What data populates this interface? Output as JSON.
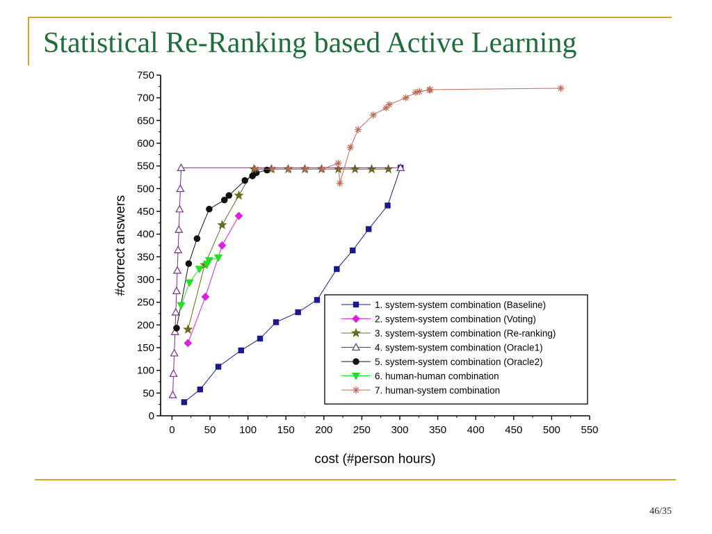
{
  "slide": {
    "title": "Statistical Re-Ranking based Active Learning",
    "page_number": "46/35"
  },
  "colors": {
    "title": "#1f6e3c",
    "rule": "#d6a22e"
  },
  "chart_data": {
    "type": "line",
    "xlabel": "cost (#person hours)",
    "ylabel": "#correct answers",
    "xlim": [
      -15,
      550
    ],
    "ylim": [
      0,
      750
    ],
    "x_ticks": [
      0,
      50,
      100,
      150,
      200,
      250,
      300,
      350,
      400,
      450,
      500,
      550
    ],
    "y_ticks": [
      0,
      50,
      100,
      150,
      200,
      250,
      300,
      350,
      400,
      450,
      500,
      550,
      600,
      650,
      700,
      750
    ],
    "grid": false,
    "legend_position": "bottom-right",
    "series": [
      {
        "name": "1. system-system combination (Baseline)",
        "color": "#1a1a8c",
        "marker": "square",
        "points": [
          [
            16,
            30
          ],
          [
            37,
            58
          ],
          [
            61,
            108
          ],
          [
            91,
            144
          ],
          [
            116,
            170
          ],
          [
            137,
            206
          ],
          [
            166,
            228
          ],
          [
            191,
            255
          ],
          [
            217,
            323
          ],
          [
            238,
            364
          ],
          [
            259,
            411
          ],
          [
            284,
            463
          ],
          [
            301,
            546
          ]
        ]
      },
      {
        "name": "2. system-system combination (Voting)",
        "color": "#e020e0",
        "marker": "diamond",
        "points": [
          [
            21,
            160
          ],
          [
            44,
            262
          ],
          [
            66,
            375
          ],
          [
            88,
            440
          ]
        ]
      },
      {
        "name": "3. system-system combination (Re-ranking)",
        "color": "#6b6b1e",
        "marker": "star",
        "points": [
          [
            21,
            190
          ],
          [
            43,
            332
          ],
          [
            66,
            420
          ],
          [
            88,
            485
          ],
          [
            108,
            543
          ],
          [
            131,
            543
          ],
          [
            153,
            543
          ],
          [
            175,
            543
          ],
          [
            197,
            543
          ],
          [
            219,
            543
          ],
          [
            241,
            543
          ],
          [
            263,
            543
          ],
          [
            285,
            543
          ]
        ]
      },
      {
        "name": "4. system-system combination (Oracle1)",
        "color": "#7a2a8a",
        "marker": "triangle-up",
        "points": [
          [
            1,
            46
          ],
          [
            2,
            93
          ],
          [
            3,
            138
          ],
          [
            4,
            185
          ],
          [
            5,
            228
          ],
          [
            6,
            275
          ],
          [
            7,
            320
          ],
          [
            8,
            365
          ],
          [
            9,
            410
          ],
          [
            10,
            455
          ],
          [
            11,
            500
          ],
          [
            12,
            546
          ],
          [
            301,
            546
          ]
        ]
      },
      {
        "name": "5. system-system combination (Oracle2)",
        "color": "#111111",
        "marker": "circle",
        "points": [
          [
            6,
            193
          ],
          [
            22,
            335
          ],
          [
            33,
            390
          ],
          [
            49,
            455
          ],
          [
            69,
            475
          ],
          [
            75,
            485
          ],
          [
            96,
            518
          ],
          [
            106,
            528
          ],
          [
            111,
            535
          ],
          [
            125,
            541
          ]
        ]
      },
      {
        "name": "6. human-human combination",
        "color": "#22e022",
        "marker": "triangle-down",
        "points": [
          [
            12,
            243
          ],
          [
            23,
            293
          ],
          [
            36,
            323
          ],
          [
            46,
            333
          ],
          [
            49,
            342
          ],
          [
            61,
            348
          ]
        ]
      },
      {
        "name": "7. human-system combination",
        "color": "#c06a5a",
        "marker": "asterisk",
        "points": [
          [
            110,
            543
          ],
          [
            132,
            543
          ],
          [
            154,
            543
          ],
          [
            176,
            543
          ],
          [
            198,
            543
          ],
          [
            219,
            556
          ],
          [
            221,
            512
          ],
          [
            235,
            591
          ],
          [
            245,
            630
          ],
          [
            265,
            662
          ],
          [
            282,
            678
          ],
          [
            286,
            685
          ],
          [
            308,
            700
          ],
          [
            321,
            712
          ],
          [
            326,
            714
          ],
          [
            339,
            717
          ],
          [
            340,
            718
          ],
          [
            512,
            721
          ]
        ]
      }
    ]
  }
}
